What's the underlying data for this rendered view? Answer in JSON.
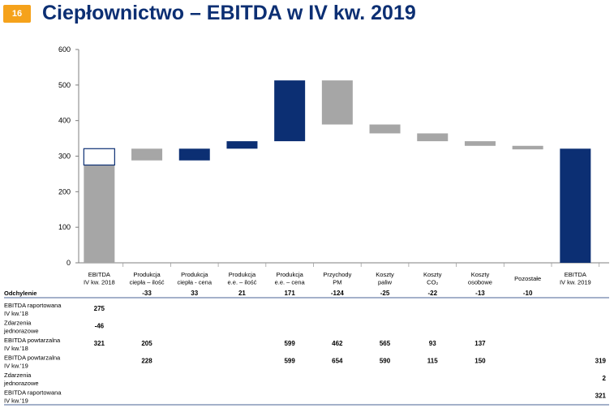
{
  "page": {
    "number": "16",
    "title": "Ciepłownictwo – EBITDA w IV kw. 2019"
  },
  "colors": {
    "navy": "#0c2f73",
    "gray": "#a6a6a6",
    "orange": "#f5a21b"
  },
  "chart_data": {
    "type": "bar",
    "subtype": "waterfall",
    "ylim": [
      0,
      600
    ],
    "yticks": [
      0,
      100,
      200,
      300,
      400,
      500,
      600
    ],
    "categories": [
      [
        "EBITDA",
        "IV kw. 2018"
      ],
      [
        "Produkcja",
        "ciepła – ilość"
      ],
      [
        "Produkcja",
        "ciepła - cena"
      ],
      [
        "Produkcja",
        "e.e. – ilość"
      ],
      [
        "Produkcja",
        "e.e. – cena"
      ],
      [
        "Przychody",
        "PM"
      ],
      [
        "Koszty",
        "paliw"
      ],
      [
        "Koszty",
        "CO₂"
      ],
      [
        "Koszty",
        "osobowe"
      ],
      [
        "Pozostałe"
      ],
      [
        "EBITDA",
        "IV kw. 2019"
      ]
    ],
    "bars": [
      {
        "base": 0,
        "top": 275,
        "color": "gray"
      },
      {
        "base": 288,
        "top": 321,
        "color": "gray"
      },
      {
        "base": 288,
        "top": 321,
        "color": "navy"
      },
      {
        "base": 321,
        "top": 342,
        "color": "navy"
      },
      {
        "base": 342,
        "top": 513,
        "color": "navy"
      },
      {
        "base": 389,
        "top": 513,
        "color": "gray"
      },
      {
        "base": 364,
        "top": 389,
        "color": "gray"
      },
      {
        "base": 342,
        "top": 364,
        "color": "gray"
      },
      {
        "base": 329,
        "top": 342,
        "color": "gray"
      },
      {
        "base": 319,
        "top": 329,
        "color": "gray"
      },
      {
        "base": 0,
        "top": 321,
        "color": "navy"
      }
    ],
    "first_bar_outline": {
      "base": 275,
      "top": 321
    },
    "deviation_label": "Odchylenie",
    "deviations": [
      "",
      "-33",
      "33",
      "21",
      "171",
      "-124",
      "-25",
      "-22",
      "-13",
      "-10",
      ""
    ],
    "rows": [
      {
        "label": [
          "EBITDA raportowana",
          "IV kw.'18"
        ],
        "values": [
          "275",
          "",
          "",
          "",
          "",
          "",
          "",
          "",
          "",
          "",
          ""
        ]
      },
      {
        "label": [
          "Zdarzenia",
          "jednorazowe"
        ],
        "values": [
          "-46",
          "",
          "",
          "",
          "",
          "",
          "",
          "",
          "",
          "",
          ""
        ]
      },
      {
        "label": [
          "EBITDA powtarzalna",
          "IV kw.'18"
        ],
        "values": [
          "321",
          "205",
          "",
          "",
          "599",
          "462",
          "565",
          "93",
          "137",
          "",
          ""
        ]
      },
      {
        "label": [
          "EBITDA powtarzalna",
          "IV kw.'19"
        ],
        "values": [
          "",
          "228",
          "",
          "",
          "599",
          "654",
          "590",
          "115",
          "150",
          "",
          "319"
        ]
      },
      {
        "label": [
          "Zdarzenia",
          "jednorazowe"
        ],
        "values": [
          "",
          "",
          "",
          "",
          "",
          "",
          "",
          "",
          "",
          "",
          "2"
        ]
      },
      {
        "label": [
          "EBITDA raportowana",
          "IV kw.'19"
        ],
        "values": [
          "",
          "",
          "",
          "",
          "",
          "",
          "",
          "",
          "",
          "",
          "321"
        ]
      }
    ]
  }
}
